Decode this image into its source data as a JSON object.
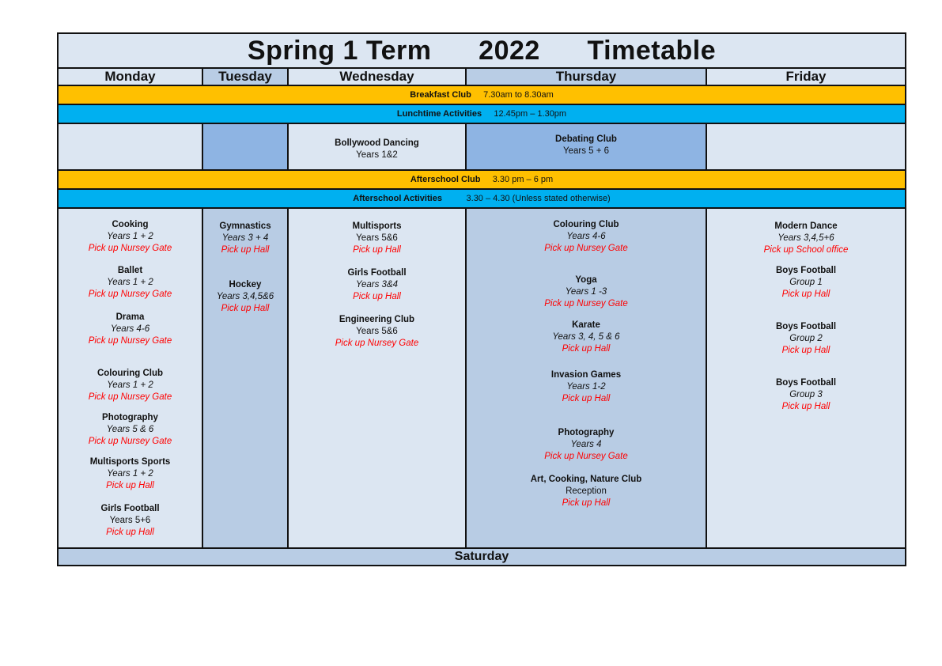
{
  "title": {
    "part1": "Spring 1 Term",
    "part2": "2022",
    "part3": "Timetable"
  },
  "days": [
    "Monday",
    "Tuesday",
    "Wednesday",
    "Thursday",
    "Friday"
  ],
  "breakfast": {
    "label": "Breakfast Club",
    "time": "7.30am to 8.30am"
  },
  "lunchtime": {
    "label": "Lunchtime Activities",
    "time": "12.45pm – 1.30pm"
  },
  "lunch_cells": {
    "wednesday": {
      "name": "Bollywood Dancing",
      "years": "Years 1&2"
    },
    "thursday": {
      "name": "Debating Club",
      "years": "Years 5 + 6"
    }
  },
  "afterschool_club": {
    "label": "Afterschool Club",
    "time": "3.30 pm – 6 pm"
  },
  "afterschool_activities": {
    "label": "Afterschool Activities",
    "time": "3.30 – 4.30 (Unless stated otherwise)"
  },
  "activities": {
    "monday": [
      {
        "name": "Cooking",
        "years": "Years 1 + 2",
        "pickup": "Pick up Nursey Gate"
      },
      {
        "name": "Ballet",
        "years": "Years 1 + 2",
        "pickup": "Pick up Nursey Gate"
      },
      {
        "name": "Drama",
        "years": "Years 4-6",
        "pickup": "Pick up Nursey Gate"
      },
      {
        "name": "Colouring Club",
        "years": "Years 1 + 2",
        "pickup": "Pick up Nursey Gate"
      },
      {
        "name": "Photography",
        "years": "Years 5 & 6",
        "pickup": "Pick up Nursey Gate"
      },
      {
        "name": "Multisports Sports",
        "years": "Years 1 + 2",
        "pickup": "Pick up Hall"
      },
      {
        "name": "Girls Football",
        "years": "Years 5+6",
        "pickup": "Pick up Hall"
      }
    ],
    "tuesday": [
      {
        "name": "Gymnastics",
        "years": "Years 3 + 4",
        "pickup": "Pick up Hall"
      },
      {
        "name": "Hockey",
        "years": "Years 3,4,5&6",
        "pickup": "Pick up Hall"
      }
    ],
    "wednesday": [
      {
        "name": "Multisports",
        "years": "Years 5&6",
        "pickup": "Pick up Hall"
      },
      {
        "name": "Girls Football",
        "years": "Years 3&4",
        "pickup": "Pick up Hall"
      },
      {
        "name": "Engineering Club",
        "years": "Years 5&6",
        "pickup": "Pick up Nursey Gate"
      }
    ],
    "thursday": [
      {
        "name": "Colouring Club",
        "years": "Years 4-6",
        "pickup": "Pick up Nursey Gate"
      },
      {
        "name": "Yoga",
        "years": "Years 1 -3",
        "pickup": "Pick up Nursey Gate"
      },
      {
        "name": "Karate",
        "years": "Years 3, 4, 5 & 6",
        "pickup": "Pick up Hall"
      },
      {
        "name": "Invasion Games",
        "years": "Years 1-2",
        "pickup": "Pick up Hall"
      },
      {
        "name": "Photography",
        "years": "Years 4",
        "pickup": "Pick up Nursey Gate"
      },
      {
        "name": "Art, Cooking, Nature Club",
        "years": "Reception",
        "pickup": "Pick up Hall"
      }
    ],
    "friday": [
      {
        "name": "Modern Dance",
        "years": "Years 3,4,5+6",
        "pickup": "Pick up School office"
      },
      {
        "name": "Boys Football",
        "years": "Group 1",
        "pickup": "Pick up Hall"
      },
      {
        "name": "Boys Football",
        "years": "Group 2",
        "pickup": "Pick up Hall"
      },
      {
        "name": "Boys Football",
        "years": "Group 3",
        "pickup": "Pick up Hall"
      }
    ]
  },
  "saturday": "Saturday",
  "colors": {
    "background": "#DCE6F2",
    "header_alt": "#B9CDE5",
    "lunch_alt": "#8EB4E3",
    "orange": "#FFC000",
    "blue": "#00B0F0",
    "pickup": "#FF0000"
  }
}
